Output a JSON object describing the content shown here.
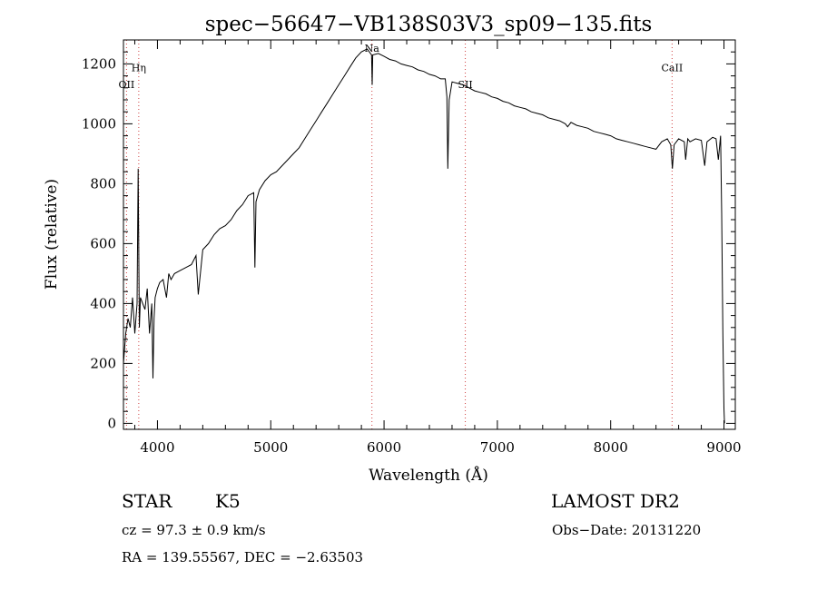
{
  "chart_data": {
    "type": "line",
    "title": "spec−56647−VB138S03V3_sp09−135.fits",
    "xlabel": "Wavelength (Å)",
    "ylabel": "Flux (relative)",
    "xlim": [
      3700,
      9100
    ],
    "ylim": [
      -20,
      1280
    ],
    "x_ticks": [
      4000,
      5000,
      6000,
      7000,
      8000,
      9000
    ],
    "y_ticks": [
      0,
      200,
      400,
      600,
      800,
      1000,
      1200
    ],
    "line_color": "#000000",
    "marker_color": "#d04040",
    "spectral_lines": [
      {
        "name": "Hη",
        "wavelength": 3835,
        "label_flux": 1175
      },
      {
        "name": "OII",
        "wavelength": 3727,
        "label_flux": 1120
      },
      {
        "name": "Na",
        "wavelength": 5893,
        "label_flux": 1240
      },
      {
        "name": "SII",
        "wavelength": 6717,
        "label_flux": 1120
      },
      {
        "name": "CaII",
        "wavelength": 8542,
        "label_flux": 1175
      }
    ],
    "series": [
      {
        "x": [
          3700,
          3720,
          3740,
          3760,
          3780,
          3800,
          3820,
          3830,
          3840,
          3850,
          3870,
          3890,
          3910,
          3930,
          3950,
          3960,
          3970,
          3980,
          4000,
          4020,
          4050,
          4080,
          4100,
          4120,
          4150,
          4200,
          4250,
          4300,
          4340,
          4360,
          4400,
          4450,
          4500,
          4550,
          4600,
          4650,
          4700,
          4750,
          4800,
          4850,
          4860,
          4870,
          4900,
          4950,
          5000,
          5050,
          5100,
          5150,
          5200,
          5250,
          5300,
          5350,
          5400,
          5450,
          5500,
          5550,
          5600,
          5650,
          5700,
          5750,
          5800,
          5850,
          5890,
          5895,
          5900,
          5950,
          6000,
          6050,
          6100,
          6150,
          6200,
          6250,
          6300,
          6350,
          6400,
          6450,
          6500,
          6540,
          6555,
          6563,
          6575,
          6600,
          6650,
          6700,
          6750,
          6800,
          6850,
          6900,
          6950,
          7000,
          7050,
          7100,
          7150,
          7200,
          7250,
          7300,
          7350,
          7400,
          7450,
          7500,
          7550,
          7600,
          7620,
          7650,
          7700,
          7750,
          7800,
          7850,
          7900,
          7950,
          8000,
          8050,
          8100,
          8150,
          8200,
          8250,
          8300,
          8350,
          8400,
          8450,
          8500,
          8530,
          8545,
          8560,
          8600,
          8650,
          8662,
          8680,
          8700,
          8750,
          8800,
          8830,
          8850,
          8900,
          8930,
          8950,
          8970,
          8980,
          8990,
          9000,
          9005
        ],
        "y": [
          200,
          300,
          350,
          320,
          420,
          300,
          400,
          850,
          320,
          420,
          400,
          380,
          450,
          300,
          400,
          150,
          350,
          420,
          450,
          470,
          480,
          420,
          500,
          480,
          500,
          510,
          520,
          530,
          560,
          430,
          580,
          600,
          630,
          650,
          660,
          680,
          710,
          730,
          760,
          770,
          520,
          740,
          780,
          810,
          830,
          840,
          860,
          880,
          900,
          920,
          950,
          980,
          1010,
          1040,
          1070,
          1100,
          1130,
          1160,
          1190,
          1220,
          1240,
          1250,
          1230,
          1130,
          1230,
          1235,
          1225,
          1215,
          1210,
          1200,
          1195,
          1190,
          1180,
          1175,
          1165,
          1160,
          1150,
          1150,
          1090,
          850,
          1080,
          1140,
          1135,
          1130,
          1120,
          1110,
          1105,
          1100,
          1090,
          1085,
          1075,
          1070,
          1060,
          1055,
          1050,
          1040,
          1035,
          1030,
          1020,
          1015,
          1010,
          1000,
          990,
          1005,
          995,
          990,
          985,
          975,
          970,
          965,
          960,
          950,
          945,
          940,
          935,
          930,
          925,
          920,
          915,
          940,
          950,
          930,
          850,
          930,
          950,
          940,
          880,
          950,
          940,
          950,
          945,
          860,
          940,
          955,
          950,
          880,
          960,
          700,
          300,
          50,
          0
        ]
      }
    ],
    "annotations": {
      "object_type": "STAR",
      "subclass": "K5",
      "survey": "LAMOST DR2",
      "redshift": "cz = 97.3 ± 0.9 km/s",
      "obs_date": "Obs−Date: 20131220",
      "coords": "RA = 139.55567, DEC =  −2.63503"
    }
  }
}
